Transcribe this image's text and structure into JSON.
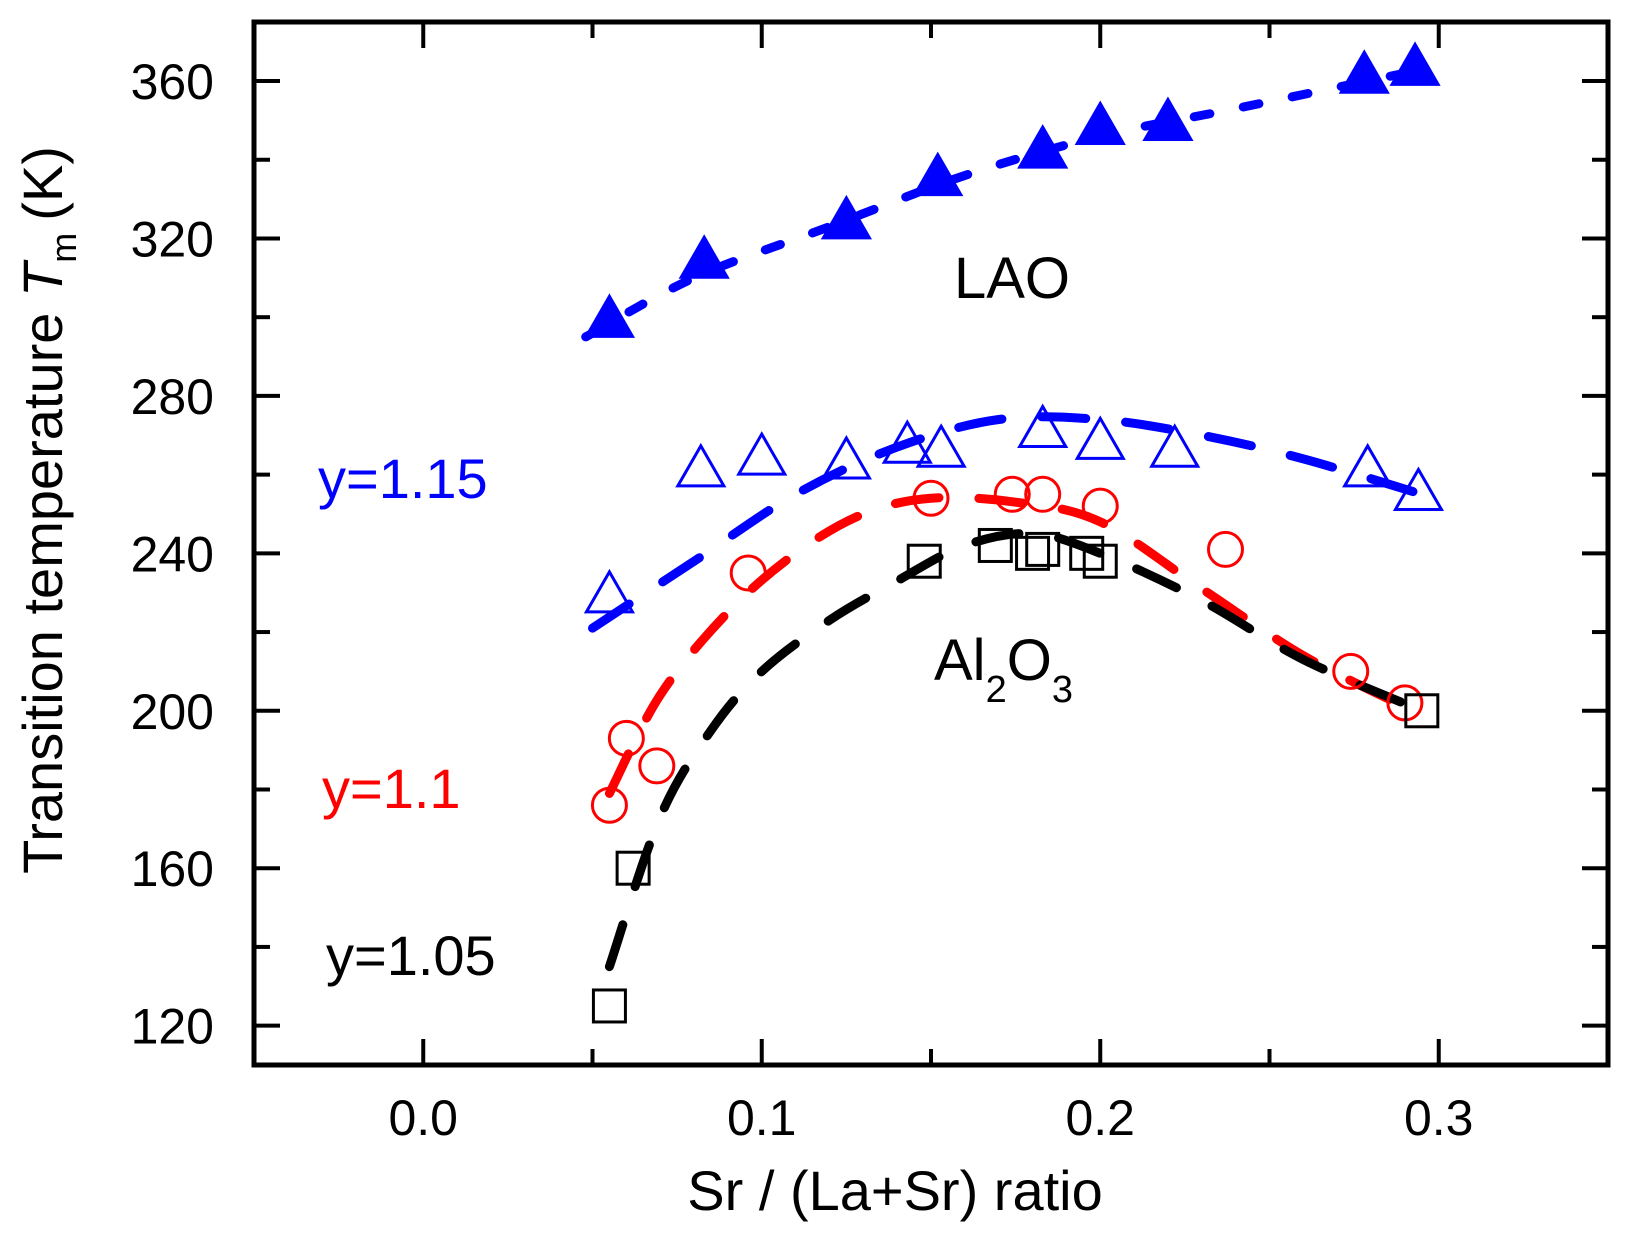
{
  "chart_data": {
    "type": "scatter",
    "title": "",
    "xlabel": "Sr / (La+Sr) ratio",
    "ylabel": "Transition temperature",
    "ylabel_symbol": "T",
    "ylabel_subscript": "m",
    "ylabel_unit": "(K)",
    "xlim": [
      -0.05,
      0.35
    ],
    "ylim": [
      110,
      375
    ],
    "xticks": [
      0.0,
      0.1,
      0.2,
      0.3
    ],
    "xtick_labels": [
      "0.0",
      "0.1",
      "0.2",
      "0.3"
    ],
    "yticks": [
      120,
      160,
      200,
      240,
      280,
      320,
      360
    ],
    "ytick_labels": [
      "120",
      "160",
      "200",
      "240",
      "280",
      "320",
      "360"
    ],
    "grid": false,
    "annotations": {
      "lao": "LAO",
      "al2o3": {
        "prefix": "Al",
        "sub1": "2",
        "mid": "O",
        "sub2": "3"
      }
    },
    "series": [
      {
        "name": "y=1.15 (LAO)",
        "color": "#0000ff",
        "marker": "triangle-filled",
        "x": [
          0.055,
          0.083,
          0.125,
          0.152,
          0.183,
          0.2,
          0.22,
          0.278,
          0.293
        ],
        "y": [
          299,
          314,
          324,
          335,
          342,
          348,
          349,
          361,
          363
        ],
        "fit_style": "dotted",
        "fit": {
          "x": [
            0.048,
            0.08,
            0.12,
            0.16,
            0.2,
            0.24,
            0.29
          ],
          "y": [
            295,
            310,
            323,
            336,
            346,
            353,
            362
          ]
        }
      },
      {
        "name": "y=1.15",
        "label": "y=1.15",
        "color": "#0000ff",
        "marker": "triangle-open",
        "x": [
          0.055,
          0.082,
          0.1,
          0.125,
          0.143,
          0.153,
          0.183,
          0.2,
          0.222,
          0.279,
          0.294
        ],
        "y": [
          229,
          261,
          264,
          263,
          267,
          266,
          271,
          268,
          266,
          261,
          255
        ],
        "fit_style": "dashed",
        "fit": {
          "x": [
            0.05,
            0.08,
            0.11,
            0.14,
            0.17,
            0.2,
            0.23,
            0.26,
            0.295
          ],
          "y": [
            221,
            238,
            255,
            267,
            274,
            274,
            270,
            264,
            255
          ]
        }
      },
      {
        "name": "y=1.1",
        "label": "y=1.1",
        "color": "#ff0000",
        "marker": "circle-open",
        "x": [
          0.055,
          0.06,
          0.069,
          0.096,
          0.15,
          0.174,
          0.183,
          0.2,
          0.237,
          0.274,
          0.29
        ],
        "y": [
          176,
          193,
          186,
          235,
          254,
          255,
          255,
          252,
          241,
          210,
          202
        ],
        "fit_style": "dashed",
        "fit": {
          "x": [
            0.055,
            0.07,
            0.09,
            0.11,
            0.13,
            0.15,
            0.175,
            0.2,
            0.23,
            0.26,
            0.29
          ],
          "y": [
            179,
            204,
            225,
            240,
            250,
            254,
            253,
            248,
            231,
            214,
            201
          ]
        }
      },
      {
        "name": "y=1.05",
        "label": "y=1.05",
        "color": "#000000",
        "marker": "square-open",
        "x": [
          0.055,
          0.062,
          0.148,
          0.169,
          0.18,
          0.183,
          0.196,
          0.2,
          0.295
        ],
        "y": [
          125,
          160,
          238,
          242,
          240,
          241,
          240,
          238,
          200
        ],
        "fit_style": "dashed",
        "fit": {
          "x": [
            0.055,
            0.07,
            0.085,
            0.1,
            0.12,
            0.14,
            0.16,
            0.18,
            0.2,
            0.23,
            0.26,
            0.295
          ],
          "y": [
            135,
            173,
            195,
            210,
            223,
            233,
            242,
            245,
            240,
            228,
            213,
            200
          ]
        }
      }
    ]
  }
}
